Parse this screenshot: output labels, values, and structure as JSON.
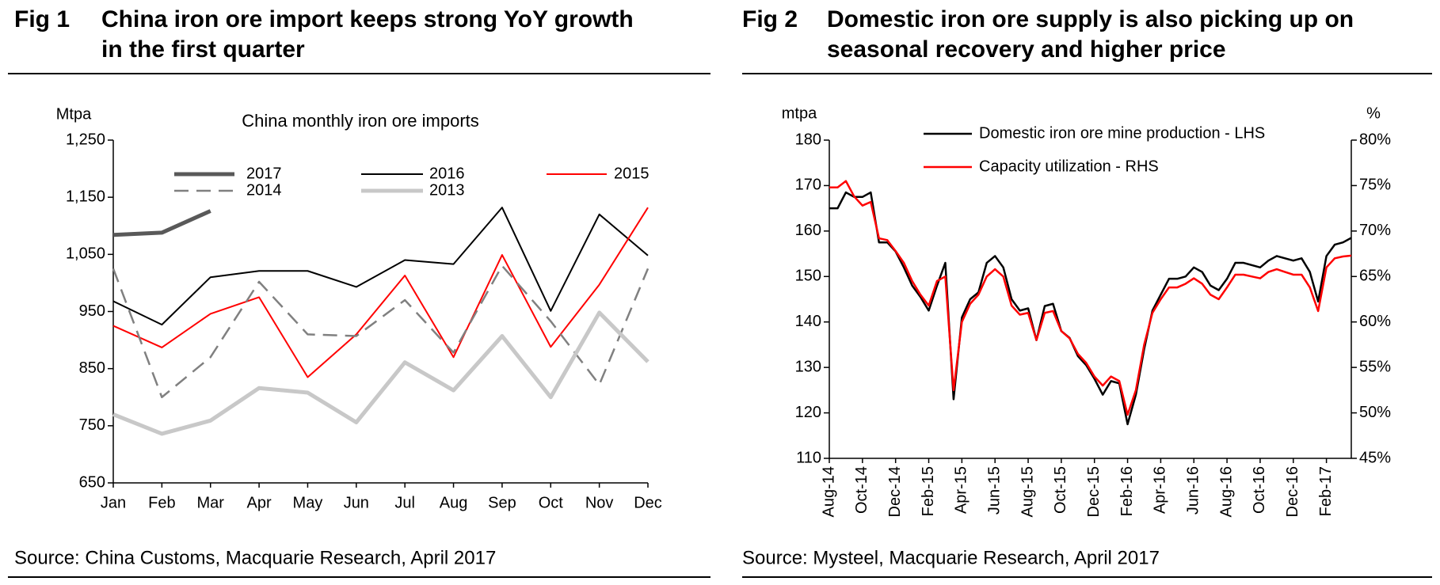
{
  "chart_data": [
    {
      "type": "line",
      "figure": "Fig 1",
      "heading": [
        "China iron ore import keeps strong YoY growth",
        "in the first quarter"
      ],
      "title": "China monthly iron ore imports",
      "ylabel": "Mtpa",
      "source": "Source: China Customs, Macquarie Research, April 2017",
      "categories": [
        "Jan",
        "Feb",
        "Mar",
        "Apr",
        "May",
        "Jun",
        "Jul",
        "Aug",
        "Sep",
        "Oct",
        "Nov",
        "Dec"
      ],
      "ylim": [
        650,
        1250
      ],
      "yticks": [
        650,
        750,
        850,
        950,
        {
          "value": 1050,
          "label": "1,050"
        },
        {
          "value": 1150,
          "label": "1,150"
        },
        {
          "value": 1250,
          "label": "1,250"
        }
      ],
      "series": [
        {
          "name": "2017",
          "color": "#595959",
          "line_width": 5,
          "dashed": false,
          "values": [
            1084,
            1088,
            1126,
            null,
            null,
            null,
            null,
            null,
            null,
            null,
            null,
            null
          ]
        },
        {
          "name": "2016",
          "color": "#000000",
          "line_width": 2,
          "dashed": false,
          "values": [
            968,
            927,
            1010,
            1021,
            1021,
            993,
            1040,
            1033,
            1132,
            951,
            1120,
            1048
          ]
        },
        {
          "name": "2015",
          "color": "#ff0000",
          "line_width": 2,
          "dashed": false,
          "values": [
            925,
            887,
            946,
            975,
            835,
            910,
            1013,
            870,
            1049,
            888,
            997,
            1132
          ]
        },
        {
          "name": "2014",
          "color": "#808080",
          "line_width": 2.5,
          "dashed": true,
          "values": [
            1025,
            800,
            870,
            1002,
            910,
            907,
            970,
            878,
            1030,
            933,
            822,
            1025
          ]
        },
        {
          "name": "2013",
          "color": "#c8c8c8",
          "line_width": 5,
          "dashed": false,
          "values": [
            770,
            736,
            759,
            816,
            808,
            756,
            861,
            812,
            907,
            800,
            948,
            862
          ]
        }
      ]
    },
    {
      "type": "line",
      "figure": "Fig 2",
      "heading": [
        "Domestic iron ore supply is also picking up on",
        "seasonal recovery and higher price"
      ],
      "ylabel": "mtpa",
      "y2label": "%",
      "source": "Source: Mysteel, Macquarie Research, April 2017",
      "categories": [
        "Aug-14",
        null,
        null,
        null,
        "Oct-14",
        null,
        null,
        null,
        "Dec-14",
        null,
        null,
        null,
        "Feb-15",
        null,
        null,
        null,
        "Apr-15",
        null,
        null,
        null,
        "Jun-15",
        null,
        null,
        null,
        "Aug-15",
        null,
        null,
        null,
        "Oct-15",
        null,
        null,
        null,
        "Dec-15",
        null,
        null,
        null,
        "Feb-16",
        null,
        null,
        null,
        "Apr-16",
        null,
        null,
        null,
        "Jun-16",
        null,
        null,
        null,
        "Aug-16",
        null,
        null,
        null,
        "Oct-16",
        null,
        null,
        null,
        "Dec-16",
        null,
        null,
        null,
        "Feb-17",
        null,
        null,
        null
      ],
      "ylim": [
        110,
        180
      ],
      "yticks": [
        110,
        120,
        130,
        140,
        150,
        160,
        170,
        180
      ],
      "y2lim": [
        45,
        80
      ],
      "y2ticks": [
        {
          "value": 45,
          "label": "45%"
        },
        {
          "value": 50,
          "label": "50%"
        },
        {
          "value": 55,
          "label": "55%"
        },
        {
          "value": 60,
          "label": "60%"
        },
        {
          "value": 65,
          "label": "65%"
        },
        {
          "value": 70,
          "label": "70%"
        },
        {
          "value": 75,
          "label": "75%"
        },
        {
          "value": 80,
          "label": "80%"
        }
      ],
      "series": [
        {
          "name": "Domestic iron ore mine production - LHS",
          "color": "#000000",
          "line_width": 2.5,
          "dashed": false,
          "values": [
            165,
            165,
            168.5,
            167.5,
            167.5,
            168.5,
            157.5,
            157.5,
            155.5,
            152,
            148,
            145.5,
            142.5,
            148,
            153,
            123,
            141,
            145,
            146.5,
            153,
            154.5,
            152,
            145,
            142.5,
            143,
            136,
            143.5,
            144,
            138,
            136.5,
            132.5,
            130.5,
            127.5,
            124,
            127,
            126.5,
            117.5,
            124,
            134,
            142.5,
            146,
            149.5,
            149.5,
            150,
            152,
            151,
            148,
            147,
            149.5,
            153,
            153,
            152.5,
            152,
            153.5,
            154.5,
            154,
            153.5,
            154,
            151,
            144.5,
            154.5,
            157,
            157.5,
            158.5
          ]
        },
        {
          "name": "Capacity utilization - RHS",
          "color": "#ff0000",
          "line_width": 2.5,
          "dashed": false,
          "axis": "y2",
          "values": [
            74.8,
            74.8,
            75.5,
            73.8,
            72.8,
            73.2,
            69.2,
            69.0,
            67.8,
            66.5,
            64.5,
            63.0,
            61.8,
            64.5,
            65.0,
            52.5,
            60.0,
            62.0,
            63.0,
            65.0,
            65.8,
            65.0,
            61.8,
            60.8,
            61.0,
            58.0,
            61.0,
            61.2,
            59.0,
            58.2,
            56.5,
            55.5,
            54.0,
            53.0,
            54.0,
            53.5,
            49.8,
            52.5,
            57.5,
            61.0,
            62.5,
            63.8,
            63.8,
            64.2,
            64.8,
            64.2,
            63.0,
            62.5,
            63.8,
            65.2,
            65.2,
            65.0,
            64.8,
            65.5,
            65.8,
            65.5,
            65.2,
            65.2,
            63.8,
            61.2,
            66.0,
            67.0,
            67.2,
            67.3
          ]
        }
      ]
    }
  ]
}
